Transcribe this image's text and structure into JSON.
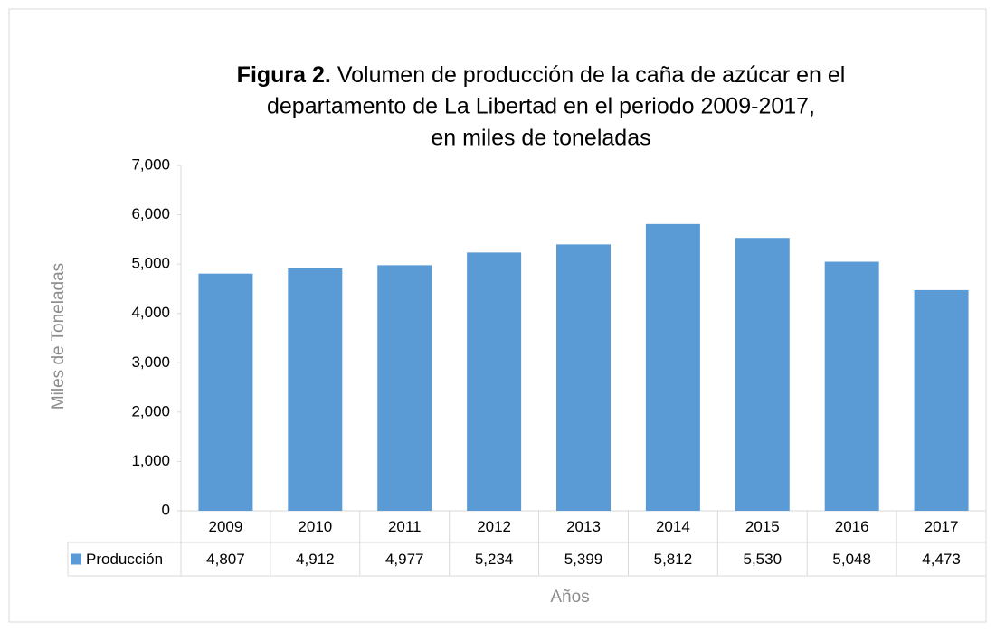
{
  "chart_data": {
    "type": "bar",
    "title_prefix": "Figura 2.",
    "title_lines": [
      "Volumen de producción de la caña de azúcar en el",
      "departamento de La Libertad en el periodo 2009-2017,",
      "en miles de toneladas"
    ],
    "ylabel": "Miles de Toneladas",
    "xlabel": "Años",
    "categories": [
      "2009",
      "2010",
      "2011",
      "2012",
      "2013",
      "2014",
      "2015",
      "2016",
      "2017"
    ],
    "series": [
      {
        "name": "Producción",
        "color": "#5b9bd5",
        "values": [
          4807,
          4912,
          4977,
          5234,
          5399,
          5812,
          5530,
          5048,
          4473
        ],
        "value_labels": [
          "4,807",
          "4,912",
          "4,977",
          "5,234",
          "5,399",
          "5,812",
          "5,530",
          "5,048",
          "4,473"
        ]
      }
    ],
    "ylim": [
      0,
      7000
    ],
    "yticks": [
      0,
      {
        "value": 1000,
        "label": "1,000"
      },
      {
        "value": 2000,
        "label": "2,000"
      },
      {
        "value": 3000,
        "label": "3,000"
      },
      {
        "value": 4000,
        "label": "4,000"
      },
      {
        "value": 5000,
        "label": "5,000"
      },
      {
        "value": 6000,
        "label": "6,000"
      },
      {
        "value": 7000,
        "label": "7,000"
      }
    ],
    "grid": false
  }
}
